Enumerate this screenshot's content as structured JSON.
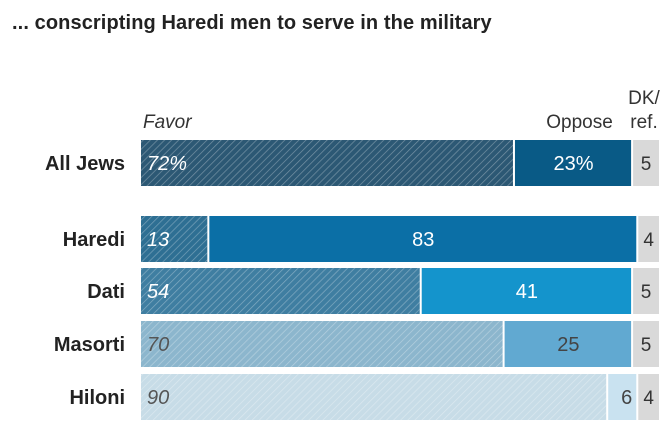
{
  "chart_data": {
    "type": "bar",
    "orientation": "horizontal",
    "stacked": true,
    "title": "... conscripting Haredi men to serve in the military",
    "xlabel": "",
    "ylabel": "",
    "xlim": [
      0,
      100
    ],
    "categories": [
      "All Jews",
      "Haredi",
      "Dati",
      "Masorti",
      "Hiloni"
    ],
    "series": [
      {
        "name": "Favor",
        "values": [
          72,
          13,
          54,
          70,
          90
        ],
        "labels": [
          "72%",
          "13",
          "54",
          "70",
          "90"
        ]
      },
      {
        "name": "Oppose",
        "values": [
          23,
          83,
          41,
          25,
          6
        ],
        "labels": [
          "23%",
          "83",
          "41",
          "25",
          "6"
        ]
      },
      {
        "name": "DK/ref.",
        "values": [
          5,
          4,
          5,
          5,
          4
        ],
        "labels": [
          "5",
          "4",
          "5",
          "5",
          "4"
        ]
      }
    ],
    "legend_position": "top",
    "colors": {
      "favor": [
        "#2c5874",
        "#2e6f93",
        "#3f7ea1",
        "#8cb6cd",
        "#c7dce7"
      ],
      "oppose": [
        "#095a86",
        "#0b6fa6",
        "#1494cc",
        "#61a9d1",
        "#c9e2f0"
      ],
      "dk": "#d9d9d9",
      "favor_label_light": "#ffffff",
      "favor_label_dark": "#555555",
      "oppose_label_light": "#ffffff",
      "oppose_label_dark": "#444444",
      "dk_label": "#333333",
      "stripe": "rgba(255,255,255,0.35)"
    }
  }
}
